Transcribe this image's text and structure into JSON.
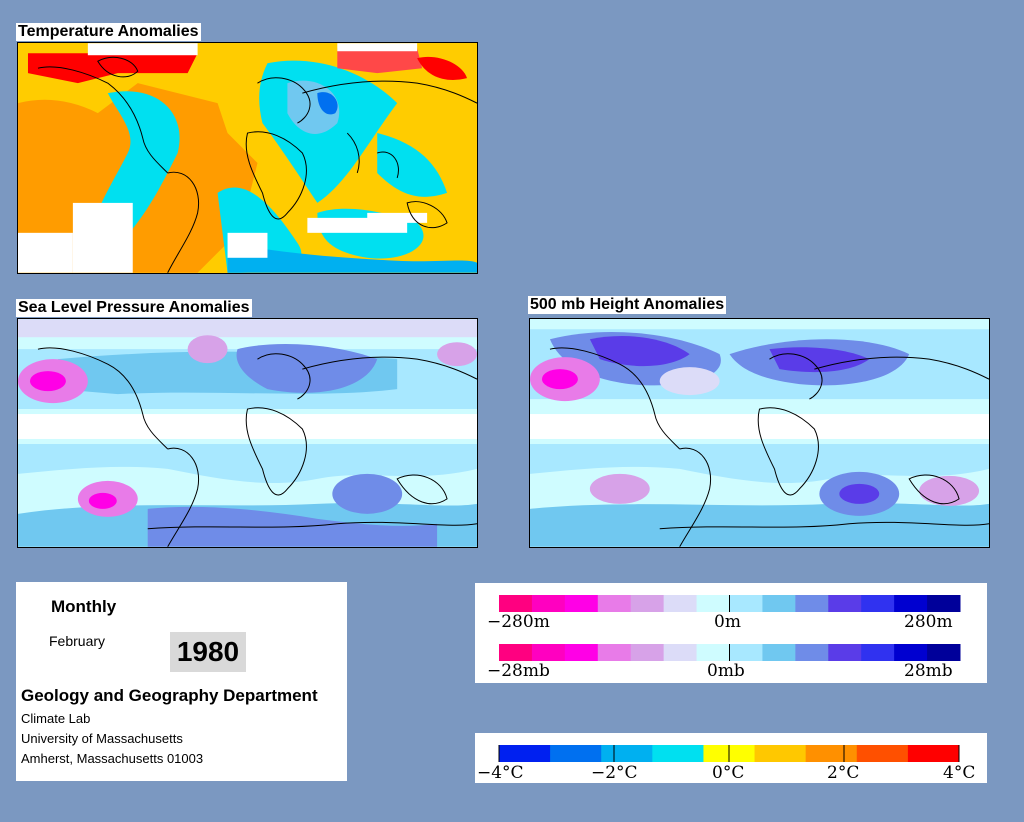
{
  "maps": {
    "temperature": {
      "title": "Temperature Anomalies"
    },
    "slp": {
      "title": "Sea Level Pressure Anomalies"
    },
    "height500": {
      "title": "500 mb Height Anomalies"
    }
  },
  "info": {
    "period": "Monthly",
    "month": "February",
    "year": "1980",
    "department": "Geology and Geography Department",
    "address_lines": [
      "Climate Lab",
      "University of Massachusetts",
      "Amherst, Massachusetts 01003"
    ]
  },
  "legends": {
    "height": {
      "min_label": "−280m",
      "mid_label": "0m",
      "max_label": "280m"
    },
    "pressure": {
      "min_label": "−28mb",
      "mid_label": "0mb",
      "max_label": "28mb"
    },
    "temperature": {
      "labels": [
        "−4°C",
        "−2°C",
        "0°C",
        "2°C",
        "4°C"
      ]
    }
  },
  "colors": {
    "background": "#7b98c1",
    "anomaly_scale": [
      "#ff0080",
      "#ff00c0",
      "#ff00e6",
      "#e87be8",
      "#d7a2e8",
      "#dcdcf8",
      "#cffcff",
      "#a8e8ff",
      "#70c8f0",
      "#6f8ce8",
      "#5a3ce8",
      "#3032f0",
      "#0000d0",
      "#00009a"
    ],
    "temperature_scale": [
      "#0020f0",
      "#0070f0",
      "#00b0f0",
      "#00e0f0",
      "#ffff00",
      "#ffc800",
      "#ff9000",
      "#ff5000",
      "#ff0000"
    ]
  }
}
